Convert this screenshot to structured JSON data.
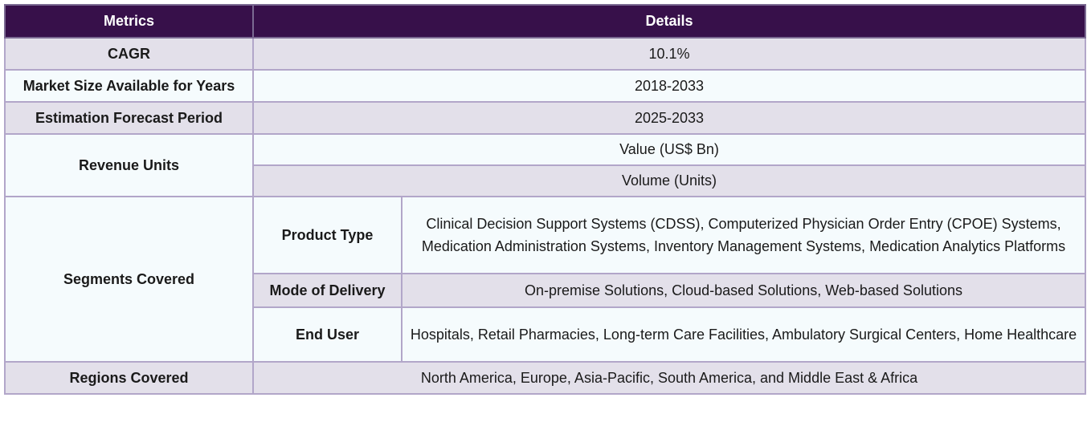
{
  "table": {
    "headers": {
      "metrics": "Metrics",
      "details": "Details"
    },
    "cagr": {
      "label": "CAGR",
      "value": "10.1%"
    },
    "market_size": {
      "label": "Market Size Available for Years",
      "value": "2018-2033"
    },
    "forecast": {
      "label": "Estimation Forecast Period",
      "value": "2025-2033"
    },
    "revenue_units": {
      "label": "Revenue Units",
      "values": [
        "Value (US$ Bn)",
        "Volume (Units)"
      ]
    },
    "segments": {
      "label": "Segments Covered",
      "product_type": {
        "label": "Product Type",
        "value": "Clinical Decision Support Systems (CDSS), Computerized Physician Order Entry (CPOE) Systems, Medication Administration Systems, Inventory Management Systems, Medication Analytics Platforms"
      },
      "mode_of_delivery": {
        "label": "Mode of Delivery",
        "value": "On-premise Solutions, Cloud-based Solutions, Web-based Solutions"
      },
      "end_user": {
        "label": "End User",
        "value": "Hospitals, Retail Pharmacies, Long-term Care Facilities, Ambulatory Surgical Centers, Home Healthcare"
      }
    },
    "regions": {
      "label": "Regions Covered",
      "value": "North America, Europe, Asia-Pacific, South America, and Middle East & Africa"
    }
  },
  "colors": {
    "header_bg": "#37104a",
    "row_shade": "#e3e0ea",
    "row_light": "#f5fbfd",
    "border": "#b2a6c9"
  }
}
